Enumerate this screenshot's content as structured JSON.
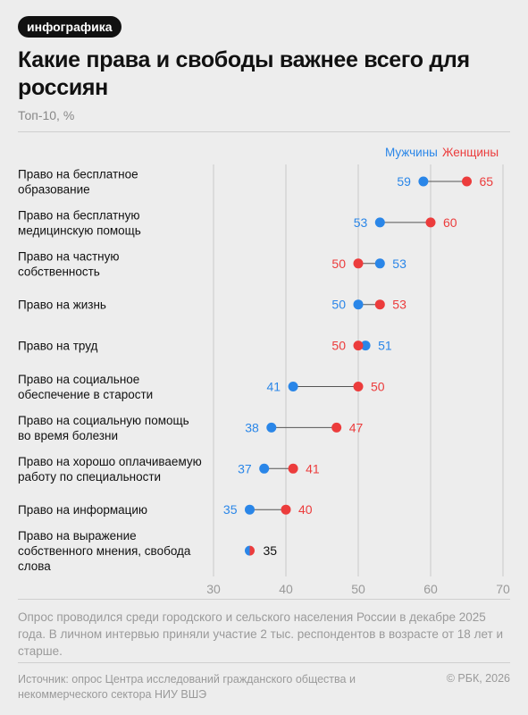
{
  "badge": "инфографика",
  "chart_data": {
    "type": "dot",
    "title": "Какие права и свободы важнее всего для россиян",
    "subtitle": "Топ-10, %",
    "xlim": [
      30,
      70
    ],
    "xticks": [
      "30",
      "40",
      "50",
      "60",
      "70"
    ],
    "legend_placement": "top-right",
    "series": [
      {
        "name": "Мужчины",
        "color": "#2a86e8"
      },
      {
        "name": "Женщины",
        "color": "#ec3c3c"
      }
    ],
    "rows": [
      {
        "category": [
          "Право на бесплатное",
          "образование"
        ],
        "men": 59,
        "women": 65
      },
      {
        "category": [
          "Право на бесплатную",
          "медицинскую помощь"
        ],
        "men": 53,
        "women": 60
      },
      {
        "category": [
          "Право на частную",
          "собственность"
        ],
        "men": 53,
        "women": 50
      },
      {
        "category": [
          "Право на жизнь"
        ],
        "men": 50,
        "women": 53
      },
      {
        "category": [
          "Право на труд"
        ],
        "men": 51,
        "women": 50
      },
      {
        "category": [
          "Право на социальное",
          "обеспечение в старости"
        ],
        "men": 41,
        "women": 50
      },
      {
        "category": [
          "Право на социальную помощь",
          "во время болезни"
        ],
        "men": 38,
        "women": 47
      },
      {
        "category": [
          "Право на хорошо оплачиваемую",
          "работу по специальности"
        ],
        "men": 37,
        "women": 41
      },
      {
        "category": [
          "Право на информацию"
        ],
        "men": 35,
        "women": 40
      },
      {
        "category": [
          "Право на выражение",
          "собственного мнения, свобода",
          "слова"
        ],
        "men": 35,
        "women": 35
      }
    ]
  },
  "note": "Опрос проводился среди городского и сельского населения России в декабре 2025 года. В личном интервью приняли участие 2 тыс. респондентов в возрасте от 18 лет и старше.",
  "source": "Источник: опрос Центра исследований гражданского общества и некоммерческого сектора НИУ ВШЭ",
  "copyright": "© РБК, 2026",
  "colors": {
    "men": "#2a86e8",
    "women": "#ec3c3c",
    "grid": "#c9c9c9",
    "connector": "#555555"
  }
}
